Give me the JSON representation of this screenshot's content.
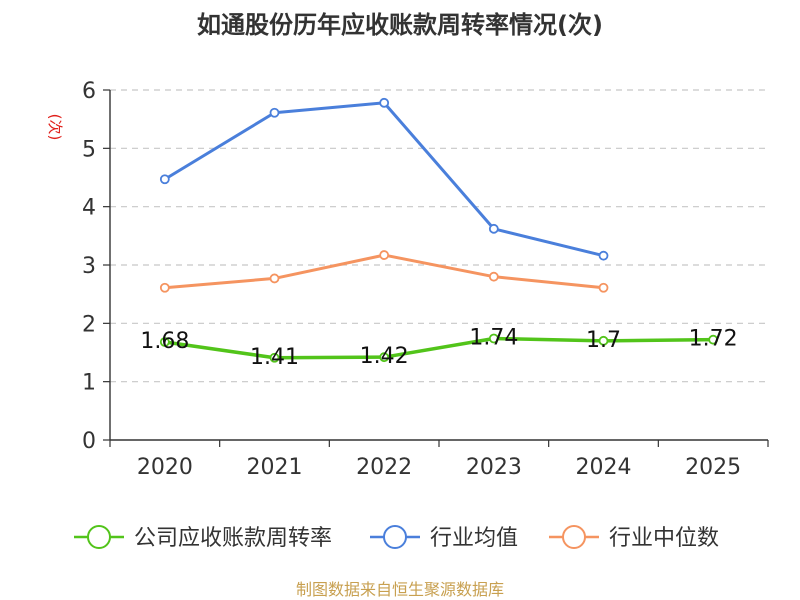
{
  "chart_data": {
    "type": "line",
    "title": "如通股份历年应收账款周转率情况(次)",
    "ylabel": "(次)",
    "xlabel": "",
    "categories": [
      "2020",
      "2021",
      "2022",
      "2023",
      "2024",
      "2025"
    ],
    "ylim": [
      0,
      6
    ],
    "yticks": [
      "0",
      "1",
      "2",
      "3",
      "4",
      "5",
      "6"
    ],
    "grid": true,
    "legend_position": "bottom",
    "series": [
      {
        "name": "公司应收账款周转率",
        "color": "#52c41a",
        "values": [
          1.68,
          1.41,
          1.42,
          1.74,
          1.7,
          1.72
        ],
        "labels": [
          "1.68",
          "1.41",
          "1.42",
          "1.74",
          "1.7",
          "1.72"
        ]
      },
      {
        "name": "行业均值",
        "color": "#4a7fdb",
        "values": [
          4.47,
          5.61,
          5.78,
          3.62,
          3.16,
          null
        ]
      },
      {
        "name": "行业中位数",
        "color": "#f59460",
        "values": [
          2.61,
          2.77,
          3.17,
          2.8,
          2.61,
          null
        ]
      }
    ],
    "source": "制图数据来自恒生聚源数据库"
  }
}
